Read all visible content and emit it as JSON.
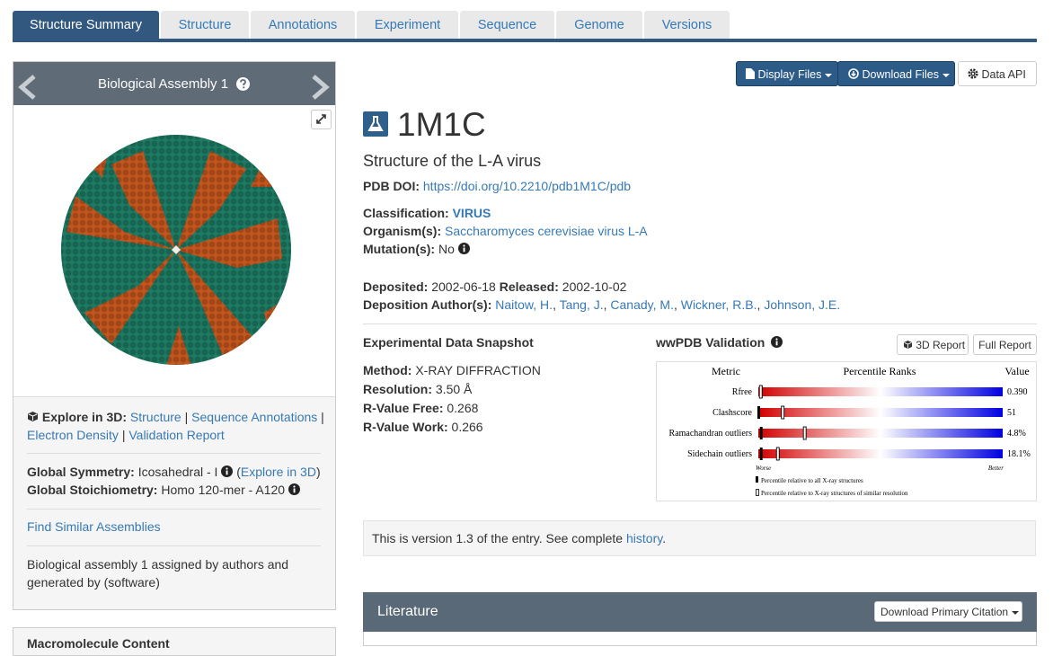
{
  "tabs": [
    "Structure Summary",
    "Structure",
    "Annotations",
    "Experiment",
    "Sequence",
    "Genome",
    "Versions"
  ],
  "assembly": {
    "title": "Biological Assembly 1",
    "explore_label": "Explore in 3D:",
    "explore_links": [
      "Structure",
      "Sequence Annotations",
      "Electron Density",
      "Validation Report"
    ],
    "separator": "|",
    "symmetry_label": "Global Symmetry:",
    "symmetry_value": "Icosahedral - I",
    "paren": [
      "(",
      ")"
    ],
    "symmetry_link": "Explore in 3D",
    "stoich_label": "Global Stoichiometry:",
    "stoich_value": "Homo 120-mer - A120",
    "find_similar": "Find Similar Assemblies",
    "note": "Biological assembly 1 assigned by authors and generated by (software)",
    "next_panel": "Macromolecule Content"
  },
  "buttons": {
    "display": "Display Files",
    "download": "Download Files",
    "api": "Data API"
  },
  "entry": {
    "id": "1M1C",
    "title": "Structure of the L-A virus",
    "doi_label": "PDB DOI:",
    "doi": "https://doi.org/10.2210/pdb1M1C/pdb",
    "classification_label": "Classification:",
    "classification": "VIRUS",
    "organism_label": "Organism(s):",
    "organism": "Saccharomyces cerevisiae virus L-A",
    "mutation_label": "Mutation(s):",
    "mutation": "No",
    "deposited_label": "Deposited:",
    "deposited": "2002-06-18",
    "released_label": "Released:",
    "released": "2002-10-02",
    "authors_label": "Deposition Author(s):",
    "authors": [
      "Naitow, H.",
      "Tang, J.",
      "Canady, M.",
      "Wickner, R.B.",
      "Johnson, J.E."
    ],
    "author_separator": ","
  },
  "snapshot": {
    "title": "Experimental Data Snapshot",
    "rows": [
      {
        "label": "Method:",
        "value": "X-RAY DIFFRACTION"
      },
      {
        "label": "Resolution:",
        "value": "3.50 Å"
      },
      {
        "label": "R-Value Free:",
        "value": "0.268"
      },
      {
        "label": "R-Value Work:",
        "value": "0.266"
      }
    ]
  },
  "validation": {
    "title": "wwPDB Validation",
    "report3d": "3D Report",
    "full": "Full Report",
    "headers": [
      "Metric",
      "Percentile Ranks",
      "Value"
    ],
    "xlim": [
      0,
      100
    ],
    "metrics": [
      {
        "name": "Rfree",
        "value": "0.390",
        "percentile_all": 1,
        "percentile_similar": 1
      },
      {
        "name": "Clashscore",
        "value": "51",
        "percentile_all": 0,
        "percentile_similar": 10
      },
      {
        "name": "Ramachandran outliers",
        "value": "4.8%",
        "percentile_all": 1,
        "percentile_similar": 19
      },
      {
        "name": "Sidechain outliers",
        "value": "18.1%",
        "percentile_all": 1,
        "percentile_similar": 8
      }
    ],
    "worse": "Worse",
    "better": "Better",
    "legend": [
      "Percentile relative to all X-ray structures",
      "Percentile relative to X-ray structures of similar resolution"
    ]
  },
  "version_note": {
    "text": "This is version 1.3 of the entry. See complete",
    "link": "history",
    "end": "."
  },
  "literature": {
    "title": "Literature",
    "button": "Download Primary Citation"
  }
}
